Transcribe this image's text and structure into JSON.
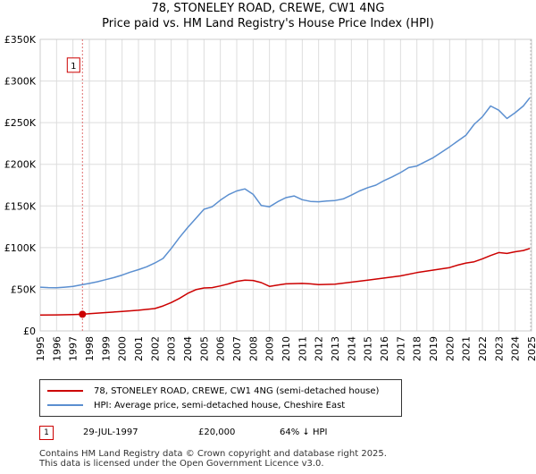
{
  "header": {
    "title_line1": "78, STONELEY ROAD, CREWE, CW1 4NG",
    "title_line2": "Price paid vs. HM Land Registry's House Price Index (HPI)"
  },
  "legend": {
    "property_label": "78, STONELEY ROAD, CREWE, CW1 4NG (semi-detached house)",
    "hpi_label": "HPI: Average price, semi-detached house, Cheshire East"
  },
  "transaction": {
    "number": "1",
    "date": "29-JUL-1997",
    "price": "£20,000",
    "hpi_diff": "64% ↓ HPI"
  },
  "footer": {
    "line1": "Contains HM Land Registry data © Crown copyright and database right 2025.",
    "line2": "This data is licensed under the Open Government Licence v3.0."
  },
  "colors": {
    "property": "#cc0000",
    "hpi": "#5b8fd0",
    "grid": "#dddddd",
    "marker_line": "#e07070"
  },
  "chart_data": {
    "type": "line",
    "title": "Price paid vs. HM Land Registry's House Price Index (HPI)",
    "xlim": [
      1995,
      2025
    ],
    "ylim": [
      0,
      350000
    ],
    "x_ticks": [
      "1995",
      "1996",
      "1997",
      "1998",
      "1999",
      "2000",
      "2001",
      "2002",
      "2003",
      "2004",
      "2005",
      "2006",
      "2007",
      "2008",
      "2009",
      "2010",
      "2011",
      "2012",
      "2013",
      "2014",
      "2015",
      "2016",
      "2017",
      "2018",
      "2019",
      "2020",
      "2021",
      "2022",
      "2023",
      "2024",
      "2025"
    ],
    "y_ticks": [
      {
        "value": 0,
        "label": "£0"
      },
      {
        "value": 50000,
        "label": "£50K"
      },
      {
        "value": 100000,
        "label": "£100K"
      },
      {
        "value": 150000,
        "label": "£150K"
      },
      {
        "value": 200000,
        "label": "£200K"
      },
      {
        "value": 250000,
        "label": "£250K"
      },
      {
        "value": 300000,
        "label": "£300K"
      },
      {
        "value": 350000,
        "label": "£350K"
      }
    ],
    "series": [
      {
        "name": "78, STONELEY ROAD, CREWE, CW1 4NG (semi-detached house)",
        "color": "#cc0000",
        "x": [
          1995.0,
          1996.0,
          1997.0,
          1997.58,
          1998.0,
          1999.0,
          2000.0,
          2001.0,
          2002.0,
          2002.5,
          2003.0,
          2003.5,
          2004.0,
          2004.5,
          2005.0,
          2005.5,
          2006.0,
          2006.5,
          2007.0,
          2007.5,
          2008.0,
          2008.5,
          2009.0,
          2009.5,
          2010.0,
          2011.0,
          2011.5,
          2012.0,
          2013.0,
          2014.0,
          2015.0,
          2016.0,
          2017.0,
          2018.0,
          2019.0,
          2020.0,
          2020.5,
          2021.0,
          2021.5,
          2022.0,
          2022.5,
          2023.0,
          2023.5,
          2024.0,
          2024.5,
          2024.9
        ],
        "y": [
          19000,
          19200,
          19600,
          20000,
          20600,
          22000,
          23300,
          24800,
          26800,
          30000,
          34000,
          39000,
          45000,
          49500,
          51500,
          52000,
          54000,
          56500,
          59500,
          61000,
          60500,
          58000,
          53500,
          55000,
          56500,
          57000,
          56500,
          55500,
          56000,
          58500,
          61000,
          63500,
          66000,
          70000,
          73000,
          76000,
          79000,
          81500,
          83000,
          86500,
          90500,
          94000,
          93000,
          95000,
          96500,
          99000
        ]
      },
      {
        "name": "HPI: Average price, semi-detached house, Cheshire East",
        "color": "#5b8fd0",
        "x": [
          1995.0,
          1995.5,
          1996.0,
          1996.5,
          1997.0,
          1997.58,
          1998.0,
          1998.5,
          1999.0,
          1999.5,
          2000.0,
          2000.5,
          2001.0,
          2001.5,
          2002.0,
          2002.5,
          2003.0,
          2003.5,
          2004.0,
          2004.5,
          2005.0,
          2005.5,
          2006.0,
          2006.5,
          2007.0,
          2007.5,
          2008.0,
          2008.5,
          2009.0,
          2009.5,
          2010.0,
          2010.5,
          2011.0,
          2011.5,
          2012.0,
          2012.5,
          2013.0,
          2013.5,
          2014.0,
          2014.5,
          2015.0,
          2015.5,
          2016.0,
          2016.5,
          2017.0,
          2017.5,
          2018.0,
          2018.5,
          2019.0,
          2019.5,
          2020.0,
          2020.5,
          2021.0,
          2021.5,
          2022.0,
          2022.5,
          2023.0,
          2023.5,
          2024.0,
          2024.5,
          2024.9
        ],
        "y": [
          52500,
          52000,
          51800,
          52500,
          53500,
          55500,
          57000,
          59000,
          61500,
          64000,
          67000,
          70500,
          73500,
          77000,
          81500,
          87000,
          99000,
          112000,
          124000,
          135000,
          146000,
          149000,
          157000,
          163500,
          168000,
          170500,
          164000,
          150500,
          149000,
          155000,
          160000,
          162000,
          157500,
          155500,
          155000,
          156000,
          156500,
          158500,
          163000,
          168000,
          172000,
          175000,
          180500,
          185000,
          190000,
          196000,
          198000,
          203000,
          208000,
          214500,
          221000,
          228000,
          235000,
          248000,
          257000,
          270000,
          265000,
          255000,
          262000,
          270000,
          280000
        ]
      }
    ],
    "annotation": {
      "label": "1",
      "x": 1997.58,
      "y": 20000
    }
  }
}
